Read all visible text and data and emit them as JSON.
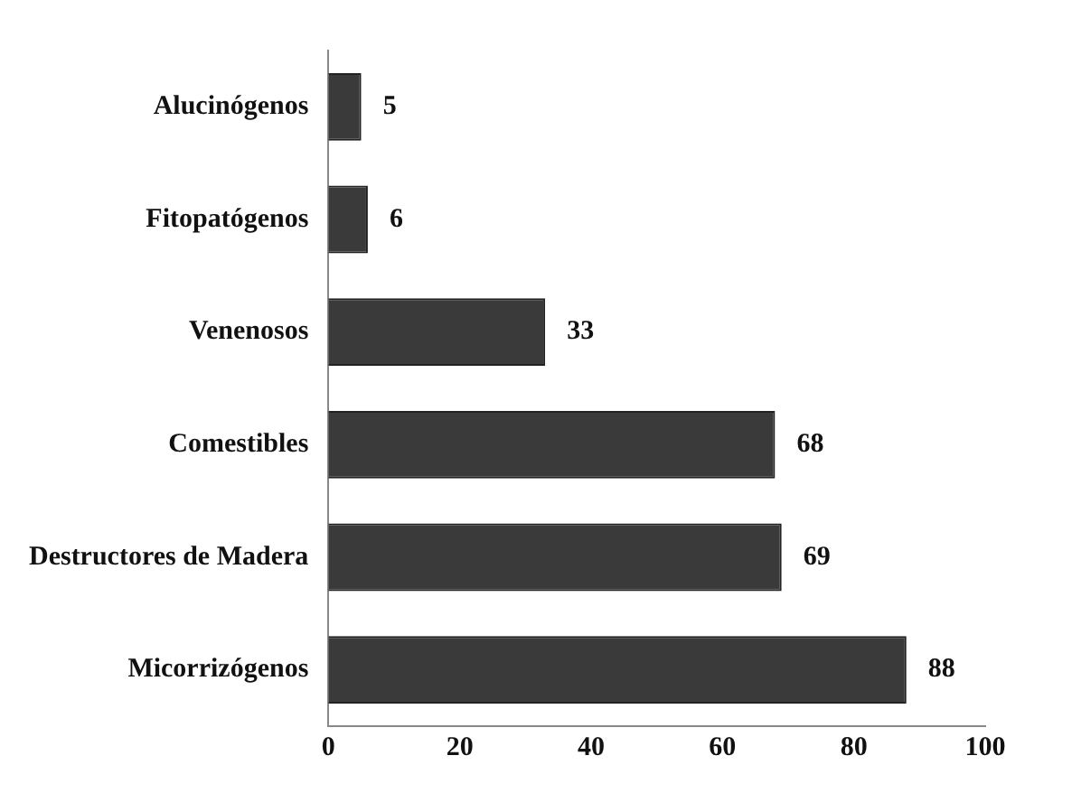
{
  "chart_data": {
    "type": "bar",
    "orientation": "horizontal",
    "categories": [
      "Alucinógenos",
      "Fitopatógenos",
      "Venenosos",
      "Comestibles",
      "Destructores de Madera",
      "Micorrizógenos"
    ],
    "values": [
      5,
      6,
      33,
      68,
      69,
      88
    ],
    "color": "#3a3a3a",
    "xlim": [
      0,
      100
    ],
    "xticks": [
      0,
      20,
      40,
      60,
      80,
      100
    ],
    "grid": false,
    "data_labels": true
  }
}
